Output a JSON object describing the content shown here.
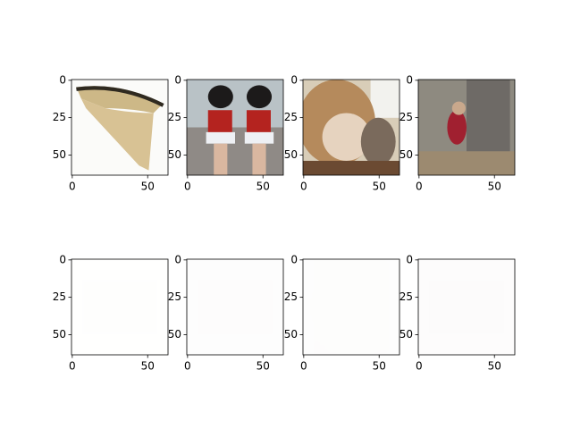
{
  "chart_data": [
    {
      "type": "image",
      "xlim": [
        -0.5,
        63.5
      ],
      "ylim": [
        63.5,
        -0.5
      ],
      "xticks": [
        0,
        50
      ],
      "yticks": [
        0,
        25,
        50
      ]
    },
    {
      "type": "image",
      "xlim": [
        -0.5,
        63.5
      ],
      "ylim": [
        63.5,
        -0.5
      ],
      "xticks": [
        0,
        50
      ],
      "yticks": [
        0,
        25,
        50
      ]
    },
    {
      "type": "image",
      "xlim": [
        -0.5,
        63.5
      ],
      "ylim": [
        63.5,
        -0.5
      ],
      "xticks": [
        0,
        50
      ],
      "yticks": [
        0,
        25,
        50
      ]
    },
    {
      "type": "image",
      "xlim": [
        -0.5,
        63.5
      ],
      "ylim": [
        63.5,
        -0.5
      ],
      "xticks": [
        0,
        50
      ],
      "yticks": [
        0,
        25,
        50
      ]
    },
    {
      "type": "image",
      "xlim": [
        -0.5,
        63.5
      ],
      "ylim": [
        63.5,
        -0.5
      ],
      "xticks": [
        0,
        50
      ],
      "yticks": [
        0,
        25,
        50
      ]
    },
    {
      "type": "image",
      "xlim": [
        -0.5,
        63.5
      ],
      "ylim": [
        63.5,
        -0.5
      ],
      "xticks": [
        0,
        50
      ],
      "yticks": [
        0,
        25,
        50
      ]
    },
    {
      "type": "image",
      "xlim": [
        -0.5,
        63.5
      ],
      "ylim": [
        63.5,
        -0.5
      ],
      "xticks": [
        0,
        50
      ],
      "yticks": [
        0,
        25,
        50
      ]
    },
    {
      "type": "image",
      "xlim": [
        -0.5,
        63.5
      ],
      "ylim": [
        63.5,
        -0.5
      ],
      "xticks": [
        0,
        50
      ],
      "yticks": [
        0,
        25,
        50
      ]
    }
  ]
}
